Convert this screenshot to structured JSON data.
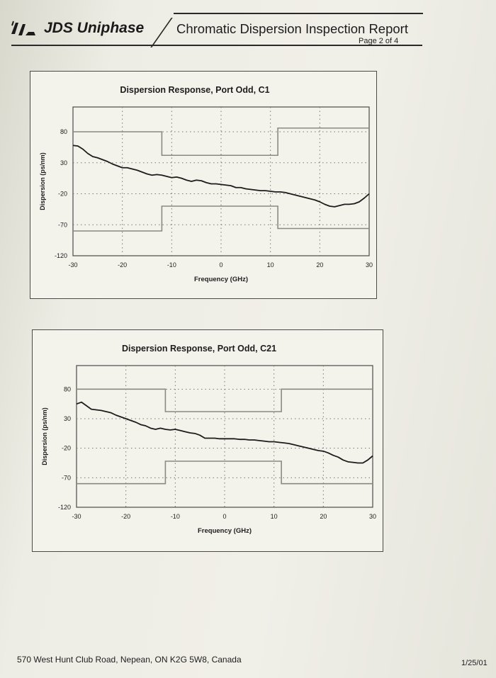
{
  "header": {
    "logo_text": "JDS Uniphase",
    "report_title": "Chromatic Dispersion Inspection Report",
    "page_label": "Page 2 of 4"
  },
  "footer": {
    "address": "570 West Hunt Club Road, Nepean, ON K2G 5W8, Canada",
    "date": "1/25/01"
  },
  "colors": {
    "curve": "#1c1c1c",
    "mask": "#8a8a82",
    "frame": "#4a4a4a",
    "grid": "#777777"
  },
  "chart_data": [
    {
      "type": "line",
      "title": "Dispersion Response, Port Odd, C1",
      "xlabel": "Frequency (GHz)",
      "ylabel": "Dispersion (ps/nm)",
      "xlim": [
        -30,
        30
      ],
      "ylim": [
        -120,
        120
      ],
      "xticks": [
        -30,
        -20,
        -10,
        0,
        10,
        20,
        30
      ],
      "yticks": [
        -120,
        -70,
        -20,
        30,
        80
      ],
      "grid": "dotted",
      "legend": "none",
      "series": [
        {
          "x": [
            -30,
            -29,
            -28,
            -27,
            -26,
            -25,
            -24,
            -23,
            -22,
            -21,
            -20,
            -19,
            -18,
            -17,
            -16,
            -15,
            -14,
            -13,
            -12,
            -11,
            -10,
            -9,
            -8,
            -7,
            -6,
            -5,
            -4,
            -3,
            -2,
            -1,
            0,
            1,
            2,
            3,
            4,
            5,
            6,
            7,
            8,
            9,
            10,
            11,
            12,
            13,
            14,
            15,
            16,
            17,
            18,
            19,
            20,
            21,
            22,
            23,
            24,
            25,
            26,
            27,
            28,
            29,
            30
          ],
          "y": [
            58,
            57,
            52,
            45,
            40,
            38,
            35,
            32,
            28,
            25,
            22,
            22,
            20,
            18,
            15,
            12,
            10,
            11,
            10,
            8,
            6,
            7,
            5,
            2,
            0,
            2,
            1,
            -2,
            -4,
            -4,
            -5,
            -6,
            -7,
            -10,
            -10,
            -12,
            -13,
            -14,
            -15,
            -15,
            -16,
            -17,
            -17,
            -18,
            -20,
            -22,
            -24,
            -26,
            -28,
            -30,
            -33,
            -37,
            -40,
            -41,
            -39,
            -37,
            -37,
            -36,
            -33,
            -27,
            -20
          ]
        }
      ],
      "mask_upper": [
        {
          "x": [
            -30,
            -12
          ],
          "y": 80
        },
        {
          "x": [
            -12,
            11.5
          ],
          "y": 42
        },
        {
          "x": [
            11.5,
            30
          ],
          "y": 86
        }
      ],
      "mask_lower": [
        {
          "x": [
            -30,
            -12
          ],
          "y": -80
        },
        {
          "x": [
            -12,
            11.5
          ],
          "y": -40
        },
        {
          "x": [
            11.5,
            30
          ],
          "y": -76
        }
      ]
    },
    {
      "type": "line",
      "title": "Dispersion Response, Port Odd, C21",
      "xlabel": "Frequency (GHz)",
      "ylabel": "Dispersion (ps/nm)",
      "xlim": [
        -30,
        30
      ],
      "ylim": [
        -120,
        120
      ],
      "xticks": [
        -30,
        -20,
        -10,
        0,
        10,
        20,
        30
      ],
      "yticks": [
        -120,
        -70,
        -20,
        30,
        80
      ],
      "grid": "dotted",
      "legend": "none",
      "series": [
        {
          "x": [
            -30,
            -29,
            -28,
            -27,
            -26,
            -25,
            -24,
            -23,
            -22,
            -21,
            -20,
            -19,
            -18,
            -17,
            -16,
            -15,
            -14,
            -13,
            -12,
            -11,
            -10,
            -9,
            -8,
            -7,
            -6,
            -5,
            -4,
            -3,
            -2,
            -1,
            0,
            1,
            2,
            3,
            4,
            5,
            6,
            7,
            8,
            9,
            10,
            11,
            12,
            13,
            14,
            15,
            16,
            17,
            18,
            19,
            20,
            21,
            22,
            23,
            24,
            25,
            26,
            27,
            28,
            29,
            30
          ],
          "y": [
            55,
            58,
            52,
            46,
            45,
            44,
            42,
            40,
            36,
            33,
            30,
            27,
            24,
            20,
            18,
            14,
            12,
            14,
            12,
            11,
            12,
            10,
            8,
            6,
            5,
            2,
            -3,
            -3,
            -3,
            -4,
            -4,
            -4,
            -4,
            -5,
            -5,
            -6,
            -6,
            -7,
            -8,
            -9,
            -9,
            -10,
            -11,
            -12,
            -14,
            -16,
            -18,
            -20,
            -22,
            -24,
            -25,
            -28,
            -32,
            -35,
            -40,
            -43,
            -44,
            -45,
            -45,
            -40,
            -33
          ]
        }
      ],
      "mask_upper": [
        {
          "x": [
            -30,
            -12
          ],
          "y": 80
        },
        {
          "x": [
            -12,
            11.5
          ],
          "y": 42
        },
        {
          "x": [
            11.5,
            30
          ],
          "y": 80
        }
      ],
      "mask_lower": [
        {
          "x": [
            -30,
            -12
          ],
          "y": -80
        },
        {
          "x": [
            -12,
            11.5
          ],
          "y": -42
        },
        {
          "x": [
            11.5,
            30
          ],
          "y": -80
        }
      ]
    }
  ]
}
